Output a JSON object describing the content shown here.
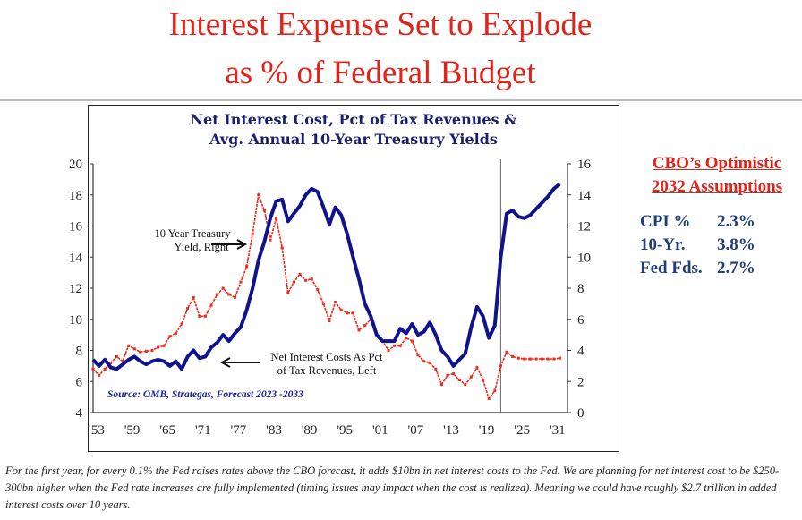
{
  "slide": {
    "title_line1": "Interest Expense Set to Explode",
    "title_line2": "as % of  Federal Budget",
    "footnote": "For the first year, for every 0.1% the Fed raises rates above the CBO forecast, it adds $10bn in net interest costs to the Fed. We are planning for net interest cost to be $250-300bn higher when the Fed rate increases are fully implemented (timing issues may impact when the cost is realized).  Meaning we could have roughly $2.7 trillion in added interest costs over 10 years."
  },
  "assumptions": {
    "heading_line1": "CBO’s Optimistic",
    "heading_line2": "2032 Assumptions",
    "rows": [
      {
        "label": "CPI %",
        "value": "2.3%"
      },
      {
        "label": "10-Yr.",
        "value": "3.8%"
      },
      {
        "label": "Fed Fds.",
        "value": "2.7%"
      }
    ]
  },
  "chart_data": {
    "type": "line",
    "title_line1": "Net Interest Cost, Pct of Tax Revenues &",
    "title_line2": "Avg. Annual 10-Year Treasury Yields",
    "source": "Source: OMB, Strategas, Forecast 2023 -2033",
    "x_tick_labels": [
      "'53",
      "'59",
      "'65",
      "'71",
      "'77",
      "'83",
      "'89",
      "'95",
      "'01",
      "'07",
      "'13",
      "'19",
      "'25",
      "'31"
    ],
    "x_ticks": [
      1953,
      1959,
      1965,
      1971,
      1977,
      1983,
      1989,
      1995,
      2001,
      2007,
      2013,
      2019,
      2025,
      2031
    ],
    "xlim": [
      1953,
      2033
    ],
    "y_left": {
      "ylim": [
        4,
        20
      ],
      "ticks": [
        4,
        6,
        8,
        10,
        12,
        14,
        16,
        18,
        20
      ]
    },
    "y_right": {
      "ylim": [
        0,
        16
      ],
      "ticks": [
        0,
        2,
        4,
        6,
        8,
        10,
        12,
        14,
        16
      ]
    },
    "forecast_divider_year": 2022,
    "grid": false,
    "annotations": [
      {
        "text_line1": "10 Year Treasury",
        "text_line2": "Yield, Right"
      },
      {
        "text_line1": "Net Interest Costs As Pct",
        "text_line2": "of Tax Revenues, Left"
      }
    ],
    "x": [
      1953,
      1954,
      1955,
      1956,
      1957,
      1958,
      1959,
      1960,
      1961,
      1962,
      1963,
      1964,
      1965,
      1966,
      1967,
      1968,
      1969,
      1970,
      1971,
      1972,
      1973,
      1974,
      1975,
      1976,
      1977,
      1978,
      1979,
      1980,
      1981,
      1982,
      1983,
      1984,
      1985,
      1986,
      1987,
      1988,
      1989,
      1990,
      1991,
      1992,
      1993,
      1994,
      1995,
      1996,
      1997,
      1998,
      1999,
      2000,
      2001,
      2002,
      2003,
      2004,
      2005,
      2006,
      2007,
      2008,
      2009,
      2010,
      2011,
      2012,
      2013,
      2014,
      2015,
      2016,
      2017,
      2018,
      2019,
      2020,
      2021,
      2022,
      2023,
      2024,
      2025,
      2026,
      2027,
      2028,
      2029,
      2030,
      2031,
      2032
    ],
    "series": [
      {
        "axis": "left",
        "color": "#10138a",
        "values": [
          7.4,
          7.0,
          7.4,
          6.9,
          6.8,
          7.1,
          7.4,
          7.6,
          7.3,
          7.1,
          7.3,
          7.4,
          7.3,
          7.0,
          7.3,
          6.8,
          7.6,
          8.0,
          7.5,
          7.6,
          8.2,
          8.5,
          9.0,
          8.6,
          9.1,
          9.5,
          10.6,
          12.0,
          13.8,
          15.0,
          16.5,
          17.6,
          17.7,
          16.3,
          16.8,
          17.3,
          18.0,
          18.4,
          18.2,
          17.2,
          16.1,
          17.2,
          16.7,
          15.5,
          14.0,
          12.6,
          11.0,
          10.2,
          9.0,
          8.6,
          8.6,
          8.6,
          9.4,
          9.1,
          9.7,
          9.0,
          9.2,
          9.8,
          9.0,
          8.0,
          7.6,
          7.0,
          7.4,
          7.8,
          9.5,
          10.8,
          10.2,
          8.8,
          9.6,
          14.0,
          16.8,
          17.0,
          16.6,
          16.5,
          16.7,
          17.1,
          17.5,
          17.9,
          18.4,
          18.7
        ]
      },
      {
        "axis": "right",
        "color": "#f02a1a",
        "values": [
          2.8,
          2.4,
          2.8,
          3.2,
          3.6,
          3.3,
          4.3,
          4.1,
          3.9,
          3.95,
          4.0,
          4.2,
          4.3,
          4.9,
          5.1,
          5.7,
          6.7,
          7.4,
          6.2,
          6.2,
          6.9,
          7.6,
          8.0,
          7.6,
          7.4,
          8.4,
          9.4,
          11.5,
          14.0,
          13.0,
          11.1,
          12.5,
          10.6,
          7.7,
          8.4,
          8.9,
          8.5,
          8.6,
          7.9,
          7.0,
          5.9,
          7.1,
          6.6,
          6.4,
          6.4,
          5.3,
          5.6,
          6.0,
          5.0,
          4.6,
          4.0,
          4.3,
          4.3,
          4.8,
          4.6,
          3.7,
          3.3,
          3.2,
          2.8,
          1.8,
          2.4,
          2.5,
          2.1,
          1.8,
          2.3,
          2.9,
          2.1,
          0.9,
          1.4,
          3.0,
          3.9,
          3.6,
          3.5,
          3.45,
          3.45,
          3.45,
          3.45,
          3.45,
          3.45,
          3.5
        ]
      }
    ]
  }
}
